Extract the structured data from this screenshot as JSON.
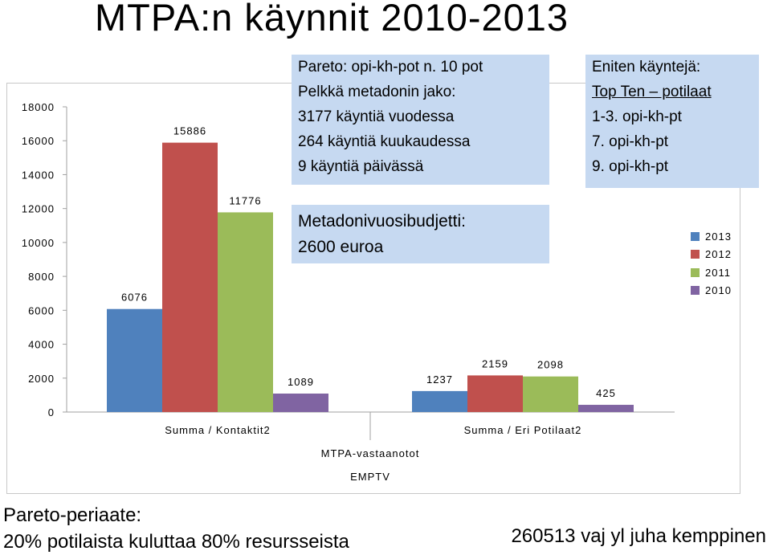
{
  "title": "MTPA:n käynnit 2010-2013",
  "chart_data": {
    "type": "bar",
    "categories": [
      "Summa / Kontaktit2",
      "Summa / Eri Potilaat2"
    ],
    "series": [
      {
        "name": "2010",
        "color": "#8064a2",
        "values": [
          1089,
          425
        ]
      },
      {
        "name": "2011",
        "color": "#9bbb59",
        "values": [
          11776,
          2098
        ]
      },
      {
        "name": "2012",
        "color": "#c0504d",
        "values": [
          15886,
          2159
        ]
      },
      {
        "name": "2013",
        "color": "#4f81bd",
        "values": [
          6076,
          1237
        ]
      }
    ],
    "draw_order": [
      "2013",
      "2012",
      "2011",
      "2010"
    ],
    "y_ticks": [
      0,
      2000,
      4000,
      6000,
      8000,
      10000,
      12000,
      14000,
      16000,
      18000
    ],
    "ylim": [
      0,
      18000
    ],
    "group_label": "MTPA-vastaanotot",
    "group_sublabel": "EMPTV",
    "legend_position": "right",
    "grid": false
  },
  "legend_order": [
    "2013",
    "2012",
    "2011",
    "2010"
  ],
  "callouts": {
    "pareto": {
      "line1": "Pareto: opi-kh-pot n. 10 pot",
      "line2": "Pelkkä metadonin jako:",
      "line3": "3177 käyntiä vuodessa",
      "line4": "264 käyntiä kuukaudessa",
      "line5": "9 käyntiä päivässä"
    },
    "most_visits": {
      "line1": "Eniten käyntejä:",
      "line2": "Top Ten – potilaat",
      "line3": "1-3. opi-kh-pt",
      "line4": "7. opi-kh-pt",
      "line5": "9. opi-kh-pt"
    },
    "budget": {
      "line1": "Metadonivuosibudjetti:",
      "line2": "2600 euroa"
    }
  },
  "footer": {
    "pareto_title": "Pareto-periaate:",
    "pareto_text": "20% potilaista kuluttaa 80% resursseista",
    "credit": "260513 vaj yl juha kemppinen"
  }
}
